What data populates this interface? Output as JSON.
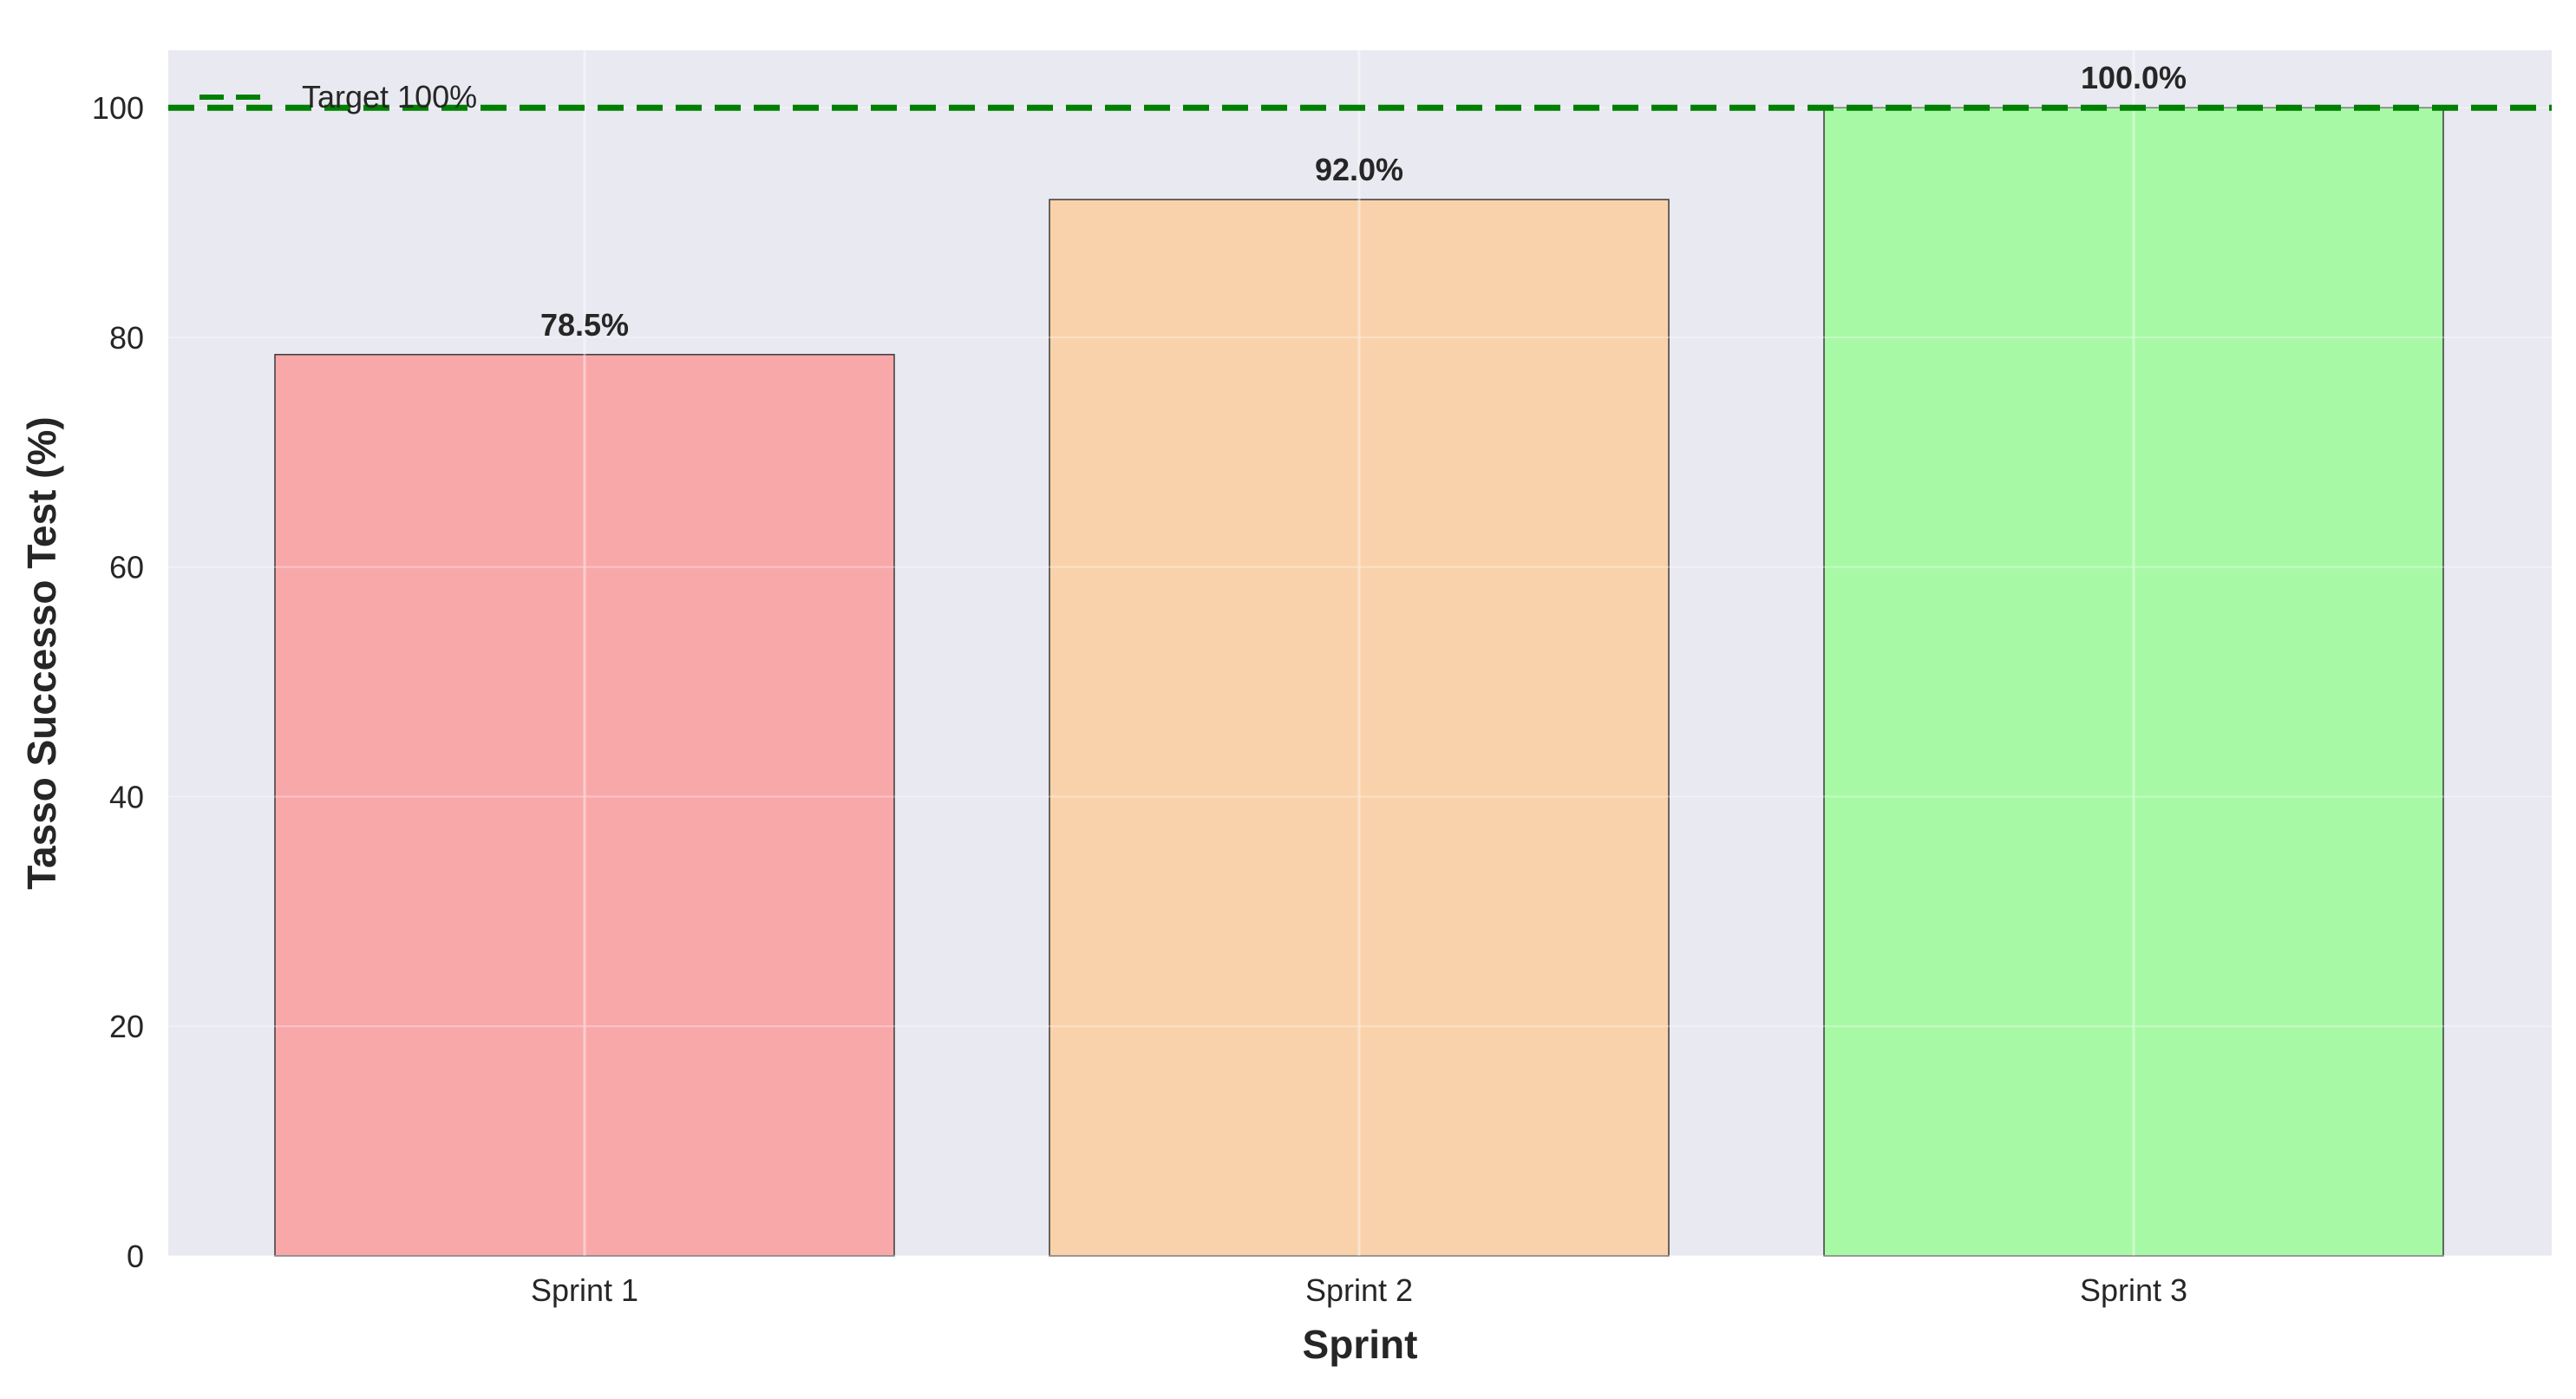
{
  "chart_data": {
    "type": "bar",
    "title": "",
    "xlabel": "Sprint",
    "ylabel": "Tasso Successo Test (%)",
    "categories": [
      "Sprint 1",
      "Sprint 2",
      "Sprint 3"
    ],
    "values": [
      78.5,
      92.0,
      100.0
    ],
    "data_labels": [
      "78.5%",
      "92.0%",
      "100.0%"
    ],
    "bar_colors": [
      "#f9a8aa",
      "#f9d2ab",
      "#a8f9a6"
    ],
    "ylim": [
      0,
      105
    ],
    "yticks": [
      0,
      20,
      40,
      60,
      80,
      100
    ],
    "grid": true,
    "background": "#e9e9f1",
    "reference_line": {
      "label": "Target 100%",
      "value": 100,
      "color": "#008000",
      "style": "dashed"
    },
    "legend": {
      "placement": "top-left",
      "entries": [
        "Target 100%"
      ]
    }
  }
}
